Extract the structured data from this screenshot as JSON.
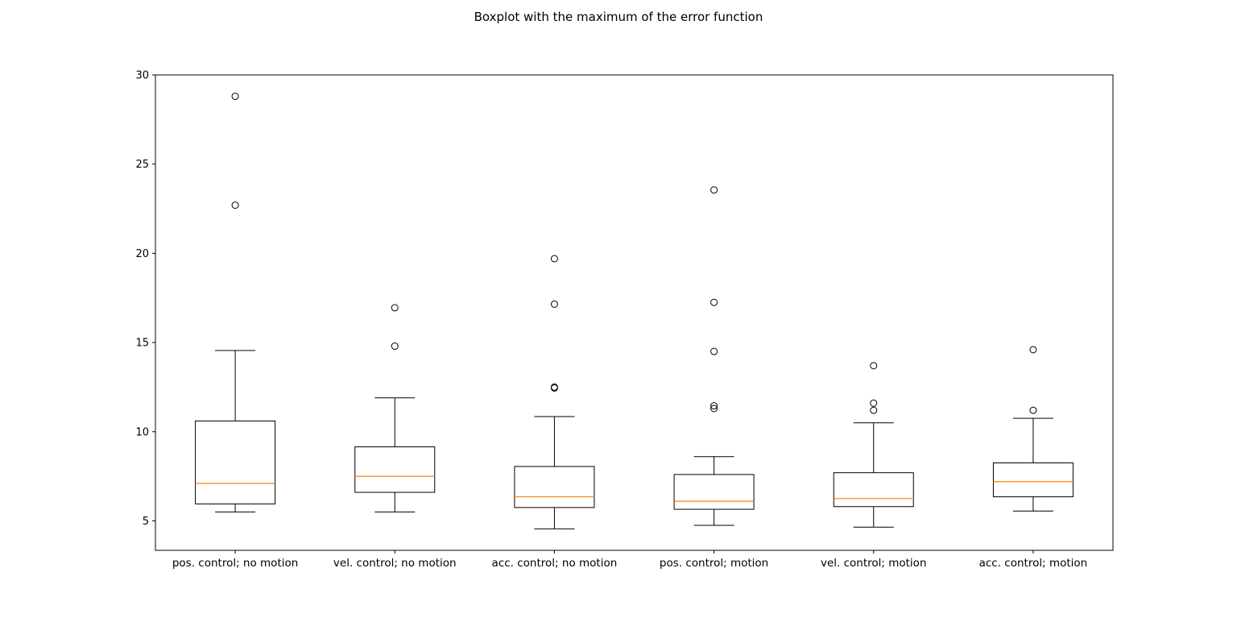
{
  "chart_data": {
    "type": "boxplot",
    "title": "Boxplot with the maximum of the error function",
    "xlabel": "",
    "ylabel": "",
    "ylim": [
      3.35,
      30
    ],
    "yticks": [
      5,
      10,
      15,
      20,
      25,
      30
    ],
    "categories": [
      "pos. control; no motion",
      "vel. control; no motion",
      "acc. control; no motion",
      "pos. control; motion",
      "vel. control; motion",
      "acc. control; motion"
    ],
    "boxes": [
      {
        "whisker_low": 5.5,
        "q1": 5.95,
        "median": 7.1,
        "q3": 10.6,
        "whisker_high": 14.55,
        "outliers": [
          22.7,
          28.8
        ]
      },
      {
        "whisker_low": 5.5,
        "q1": 6.6,
        "median": 7.5,
        "q3": 9.15,
        "whisker_high": 11.9,
        "outliers": [
          14.8,
          16.95
        ]
      },
      {
        "whisker_low": 4.55,
        "q1": 5.75,
        "median": 6.35,
        "q3": 8.05,
        "whisker_high": 10.85,
        "outliers": [
          12.45,
          12.5,
          17.15,
          19.7
        ]
      },
      {
        "whisker_low": 4.75,
        "q1": 5.65,
        "median": 6.1,
        "q3": 7.6,
        "whisker_high": 8.6,
        "outliers": [
          11.3,
          11.45,
          14.5,
          17.25,
          23.55
        ]
      },
      {
        "whisker_low": 4.65,
        "q1": 5.8,
        "median": 6.25,
        "q3": 7.7,
        "whisker_high": 10.5,
        "outliers": [
          11.2,
          11.6,
          13.7
        ]
      },
      {
        "whisker_low": 5.55,
        "q1": 6.35,
        "median": 7.2,
        "q3": 8.25,
        "whisker_high": 10.75,
        "outliers": [
          11.2,
          14.6
        ]
      }
    ],
    "colors": {
      "box": "#000000",
      "median": "#ff7f0e"
    },
    "grid": false
  }
}
